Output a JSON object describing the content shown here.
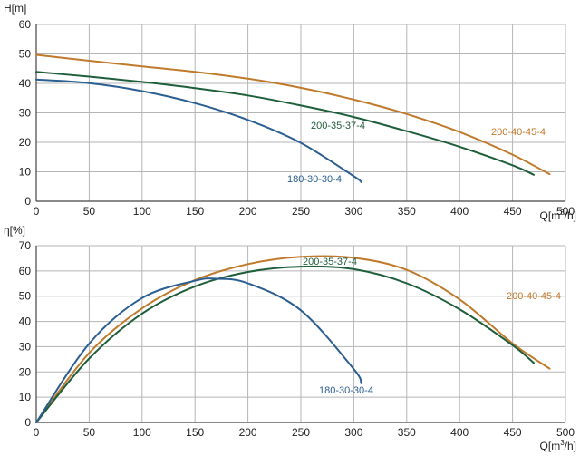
{
  "colors": {
    "orange": "#c07a2c",
    "green": "#1f5e3a",
    "blue": "#2b5e91",
    "grid": "#b5b5b5",
    "axis": "#444444"
  },
  "chart_data": [
    {
      "type": "line",
      "ylabel": "H[m]",
      "xlabel_main": "Q[m",
      "xlabel_sup": "3",
      "xlabel_tail": "/h]",
      "xlim": [
        0,
        500
      ],
      "ylim": [
        0,
        60
      ],
      "xticks": [
        "0",
        "50",
        "100",
        "150",
        "200",
        "250",
        "300",
        "350",
        "400",
        "450",
        "500"
      ],
      "yticks": [
        "0",
        "10",
        "20",
        "30",
        "40",
        "50",
        "60"
      ],
      "grid": true,
      "series": [
        {
          "name": "200-40-45-4",
          "color": "orange",
          "x": [
            0,
            50,
            100,
            150,
            200,
            250,
            300,
            350,
            400,
            450,
            485
          ],
          "y": [
            49.7,
            47.7,
            45.8,
            43.9,
            41.6,
            38.5,
            34.5,
            29.6,
            23.5,
            15.8,
            9.2
          ]
        },
        {
          "name": "200-35-37-4",
          "color": "green",
          "x": [
            0,
            50,
            100,
            150,
            200,
            250,
            300,
            350,
            400,
            450,
            470
          ],
          "y": [
            43.9,
            42.3,
            40.5,
            38.4,
            35.9,
            32.5,
            28.6,
            23.8,
            18.5,
            12.2,
            9.0
          ]
        },
        {
          "name": "180-30-30-4",
          "color": "blue",
          "x": [
            0,
            50,
            100,
            150,
            200,
            250,
            300,
            307
          ],
          "y": [
            41.3,
            40.1,
            37.4,
            33.3,
            27.6,
            19.8,
            8.5,
            6.5
          ]
        }
      ]
    },
    {
      "type": "line",
      "ylabel": "η[%]",
      "xlabel_main": "Q[m",
      "xlabel_sup": "3",
      "xlabel_tail": "/h]",
      "xlim": [
        0,
        500
      ],
      "ylim": [
        0,
        70
      ],
      "xticks": [
        "0",
        "50",
        "100",
        "150",
        "200",
        "250",
        "300",
        "350",
        "400",
        "450",
        "500"
      ],
      "yticks": [
        "0",
        "10",
        "20",
        "30",
        "40",
        "50",
        "60",
        "70"
      ],
      "grid": true,
      "series": [
        {
          "name": "200-40-45-4",
          "color": "orange",
          "x": [
            0,
            50,
            100,
            150,
            200,
            250,
            300,
            350,
            400,
            450,
            485
          ],
          "y": [
            0,
            27.5,
            45.2,
            56.4,
            62.7,
            65.6,
            65.2,
            60.4,
            48.7,
            31.3,
            21.3
          ]
        },
        {
          "name": "200-35-37-4",
          "color": "green",
          "x": [
            0,
            50,
            100,
            150,
            200,
            250,
            300,
            350,
            400,
            450,
            470
          ],
          "y": [
            0,
            25.3,
            43.1,
            53.9,
            59.6,
            61.7,
            60.7,
            55.1,
            44.8,
            30.6,
            23.6
          ]
        },
        {
          "name": "180-30-30-4",
          "color": "blue",
          "x": [
            0,
            50,
            100,
            150,
            170,
            200,
            250,
            300,
            307
          ],
          "y": [
            0,
            31.2,
            49.3,
            56.1,
            56.9,
            55.1,
            44.4,
            21.1,
            15.5
          ]
        }
      ]
    }
  ]
}
